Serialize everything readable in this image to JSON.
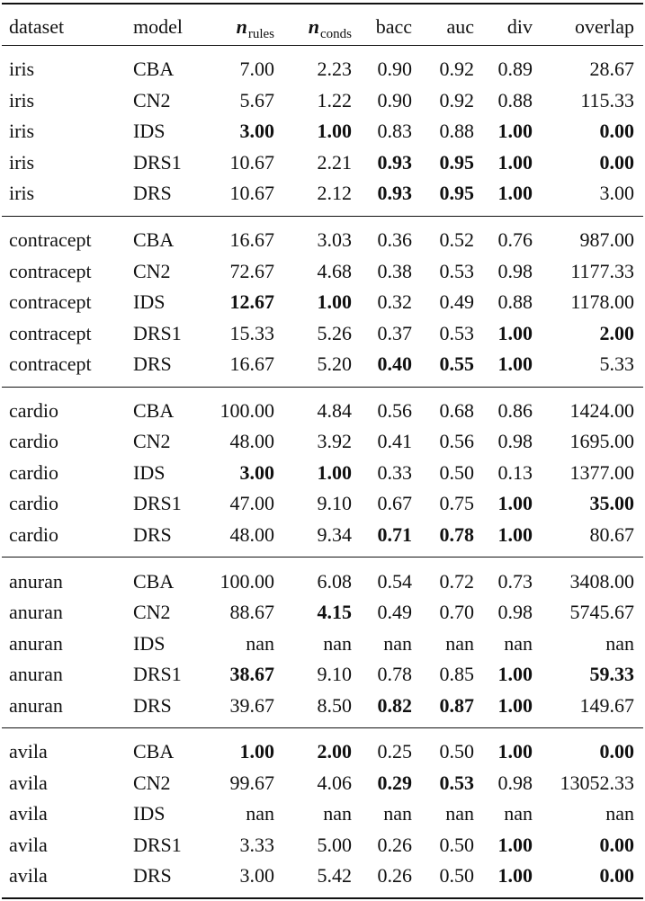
{
  "table": {
    "header": [
      "dataset",
      "model",
      {
        "text": "n",
        "sub": "rules"
      },
      {
        "text": "n",
        "sub": "conds"
      },
      "bacc",
      "auc",
      "div",
      "overlap"
    ],
    "groups": [
      {
        "rows": [
          [
            "iris",
            "CBA",
            "7.00",
            "2.23",
            "0.90",
            "0.92",
            "0.89",
            "28.67"
          ],
          [
            "iris",
            "CN2",
            "5.67",
            "1.22",
            "0.90",
            "0.92",
            "0.88",
            "115.33"
          ],
          [
            "iris",
            "IDS",
            {
              "text": "3.00",
              "bold": true
            },
            {
              "text": "1.00",
              "bold": true
            },
            "0.83",
            "0.88",
            {
              "text": "1.00",
              "bold": true
            },
            {
              "text": "0.00",
              "bold": true
            }
          ],
          [
            "iris",
            "DRS1",
            "10.67",
            "2.21",
            {
              "text": "0.93",
              "bold": true
            },
            {
              "text": "0.95",
              "bold": true
            },
            {
              "text": "1.00",
              "bold": true
            },
            {
              "text": "0.00",
              "bold": true
            }
          ],
          [
            "iris",
            "DRS",
            "10.67",
            "2.12",
            {
              "text": "0.93",
              "bold": true
            },
            {
              "text": "0.95",
              "bold": true
            },
            {
              "text": "1.00",
              "bold": true
            },
            "3.00"
          ]
        ]
      },
      {
        "rows": [
          [
            "contracept",
            "CBA",
            "16.67",
            "3.03",
            "0.36",
            "0.52",
            "0.76",
            "987.00"
          ],
          [
            "contracept",
            "CN2",
            "72.67",
            "4.68",
            "0.38",
            "0.53",
            "0.98",
            "1177.33"
          ],
          [
            "contracept",
            "IDS",
            {
              "text": "12.67",
              "bold": true
            },
            {
              "text": "1.00",
              "bold": true
            },
            "0.32",
            "0.49",
            "0.88",
            "1178.00"
          ],
          [
            "contracept",
            "DRS1",
            "15.33",
            "5.26",
            "0.37",
            "0.53",
            {
              "text": "1.00",
              "bold": true
            },
            {
              "text": "2.00",
              "bold": true
            }
          ],
          [
            "contracept",
            "DRS",
            "16.67",
            "5.20",
            {
              "text": "0.40",
              "bold": true
            },
            {
              "text": "0.55",
              "bold": true
            },
            {
              "text": "1.00",
              "bold": true
            },
            "5.33"
          ]
        ]
      },
      {
        "rows": [
          [
            "cardio",
            "CBA",
            "100.00",
            "4.84",
            "0.56",
            "0.68",
            "0.86",
            "1424.00"
          ],
          [
            "cardio",
            "CN2",
            "48.00",
            "3.92",
            "0.41",
            "0.56",
            "0.98",
            "1695.00"
          ],
          [
            "cardio",
            "IDS",
            {
              "text": "3.00",
              "bold": true
            },
            {
              "text": "1.00",
              "bold": true
            },
            "0.33",
            "0.50",
            "0.13",
            "1377.00"
          ],
          [
            "cardio",
            "DRS1",
            "47.00",
            "9.10",
            "0.67",
            "0.75",
            {
              "text": "1.00",
              "bold": true
            },
            {
              "text": "35.00",
              "bold": true
            }
          ],
          [
            "cardio",
            "DRS",
            "48.00",
            "9.34",
            {
              "text": "0.71",
              "bold": true
            },
            {
              "text": "0.78",
              "bold": true
            },
            {
              "text": "1.00",
              "bold": true
            },
            "80.67"
          ]
        ]
      },
      {
        "rows": [
          [
            "anuran",
            "CBA",
            "100.00",
            "6.08",
            "0.54",
            "0.72",
            "0.73",
            "3408.00"
          ],
          [
            "anuran",
            "CN2",
            "88.67",
            {
              "text": "4.15",
              "bold": true
            },
            "0.49",
            "0.70",
            "0.98",
            "5745.67"
          ],
          [
            "anuran",
            "IDS",
            "nan",
            "nan",
            "nan",
            "nan",
            "nan",
            "nan"
          ],
          [
            "anuran",
            "DRS1",
            {
              "text": "38.67",
              "bold": true
            },
            "9.10",
            "0.78",
            "0.85",
            {
              "text": "1.00",
              "bold": true
            },
            {
              "text": "59.33",
              "bold": true
            }
          ],
          [
            "anuran",
            "DRS",
            "39.67",
            "8.50",
            {
              "text": "0.82",
              "bold": true
            },
            {
              "text": "0.87",
              "bold": true
            },
            {
              "text": "1.00",
              "bold": true
            },
            "149.67"
          ]
        ]
      },
      {
        "rows": [
          [
            "avila",
            "CBA",
            {
              "text": "1.00",
              "bold": true
            },
            {
              "text": "2.00",
              "bold": true
            },
            "0.25",
            "0.50",
            {
              "text": "1.00",
              "bold": true
            },
            {
              "text": "0.00",
              "bold": true
            }
          ],
          [
            "avila",
            "CN2",
            "99.67",
            "4.06",
            {
              "text": "0.29",
              "bold": true
            },
            {
              "text": "0.53",
              "bold": true
            },
            "0.98",
            "13052.33"
          ],
          [
            "avila",
            "IDS",
            "nan",
            "nan",
            "nan",
            "nan",
            "nan",
            "nan"
          ],
          [
            "avila",
            "DRS1",
            "3.33",
            "5.00",
            "0.26",
            "0.50",
            {
              "text": "1.00",
              "bold": true
            },
            {
              "text": "0.00",
              "bold": true
            }
          ],
          [
            "avila",
            "DRS",
            "3.00",
            "5.42",
            "0.26",
            "0.50",
            {
              "text": "1.00",
              "bold": true
            },
            {
              "text": "0.00",
              "bold": true
            }
          ]
        ]
      }
    ]
  }
}
